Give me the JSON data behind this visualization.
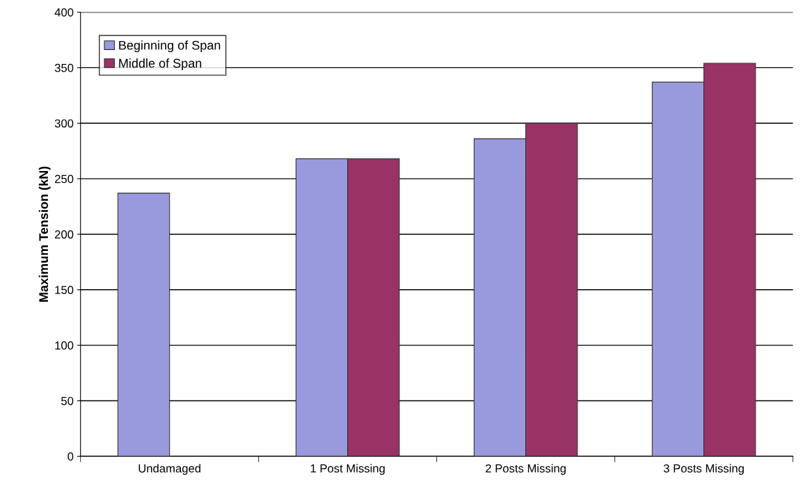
{
  "chart_data": {
    "type": "bar",
    "ylabel": "Maximum Tension (kN)",
    "categories": [
      "Undamaged",
      "1 Post Missing",
      "2 Posts Missing",
      "3 Posts Missing"
    ],
    "series": [
      {
        "name": "Beginning of Span",
        "color": "#9999dd",
        "values": [
          237,
          268,
          286,
          337
        ]
      },
      {
        "name": "Middle of Span",
        "color": "#993366",
        "values": [
          null,
          268,
          300,
          354
        ]
      }
    ],
    "ylim": [
      0,
      400
    ],
    "yticks": [
      0,
      50,
      100,
      150,
      200,
      250,
      300,
      350,
      400
    ],
    "grid": "y",
    "legend": "top left"
  }
}
